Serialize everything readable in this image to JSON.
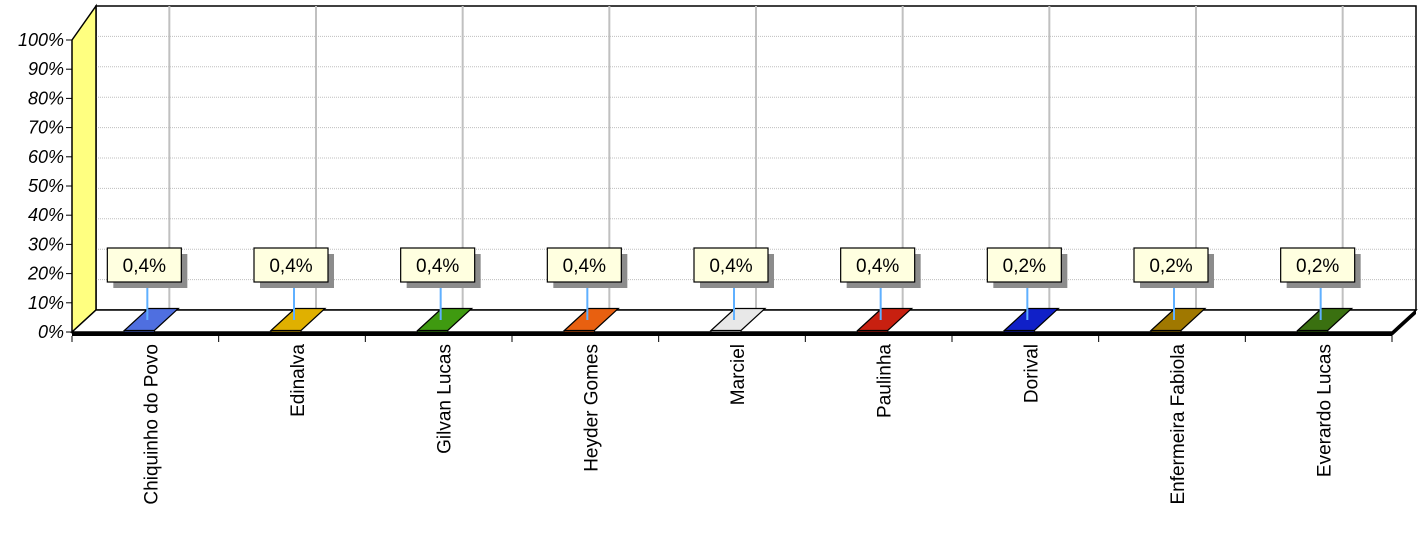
{
  "chart_data": {
    "type": "bar",
    "title": "",
    "xlabel": "",
    "ylabel": "",
    "ylim": [
      0,
      100
    ],
    "y_ticks": [
      "0%",
      "10%",
      "20%",
      "30%",
      "40%",
      "50%",
      "60%",
      "70%",
      "80%",
      "90%",
      "100%"
    ],
    "grid": true,
    "legend": "none",
    "categories": [
      "Chiquinho do Povo",
      "Edinalva",
      "Gilvan Lucas",
      "Heyder Gomes",
      "Marciel",
      "Paulinha",
      "Dorival",
      "Enfermeira Fabiola",
      "Everardo Lucas"
    ],
    "values": [
      0.4,
      0.4,
      0.4,
      0.4,
      0.4,
      0.4,
      0.2,
      0.2,
      0.2
    ],
    "data_labels": [
      "0,4%",
      "0,4%",
      "0,4%",
      "0,4%",
      "0,4%",
      "0,4%",
      "0,2%",
      "0,2%",
      "0,2%"
    ],
    "colors": [
      "#4f6fe0",
      "#e0b000",
      "#3f9a10",
      "#e86010",
      "#e8e8e8",
      "#c82010",
      "#1020c8",
      "#a07800",
      "#3a7010"
    ],
    "wall_color": "#ffff80",
    "label_box_color": "#ffffe0"
  }
}
